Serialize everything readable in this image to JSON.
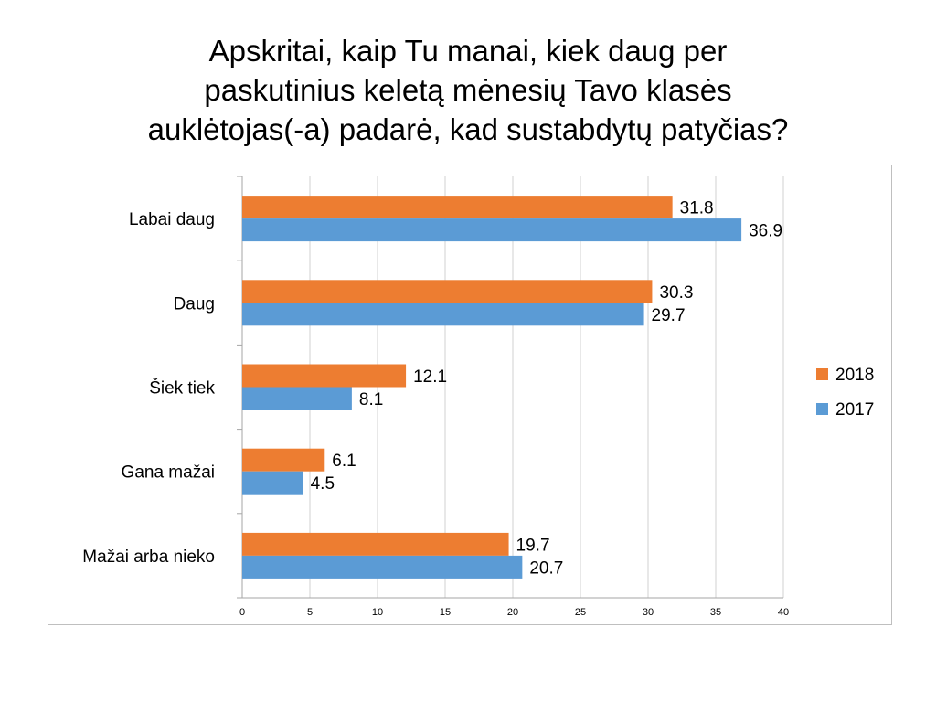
{
  "title": {
    "line1": "Apskritai, kaip Tu manai, kiek daug per",
    "line2": "paskutinius keletą mėnesių Tavo klasės",
    "line3": "auklėtojas(-a) padarė, kad sustabdytų patyčias?"
  },
  "colors": {
    "series_2018": "#ed7d31",
    "series_2017": "#5b9bd5",
    "gridline": "#d0d0d0",
    "axis": "#a6a6a6"
  },
  "chart_data": {
    "type": "bar",
    "orientation": "horizontal",
    "title": "",
    "xlabel": "",
    "ylabel": "",
    "xlim": [
      0,
      40
    ],
    "x_ticks": [
      "0",
      "5",
      "10",
      "15",
      "20",
      "25",
      "30",
      "35",
      "40"
    ],
    "grid": true,
    "legend_position": "right",
    "categories": [
      "Labai daug",
      "Daug",
      "Šiek tiek",
      "Gana mažai",
      "Mažai arba nieko"
    ],
    "series": [
      {
        "name": "2018",
        "values": [
          31.8,
          30.3,
          12.1,
          6.1,
          19.7
        ],
        "labels": [
          "31.8",
          "30.3",
          "12.1",
          "6.1",
          "19.7"
        ]
      },
      {
        "name": "2017",
        "values": [
          36.9,
          29.7,
          8.1,
          4.5,
          20.7
        ],
        "labels": [
          "36.9",
          "29.7",
          "8.1",
          "4.5",
          "20.7"
        ]
      }
    ]
  }
}
